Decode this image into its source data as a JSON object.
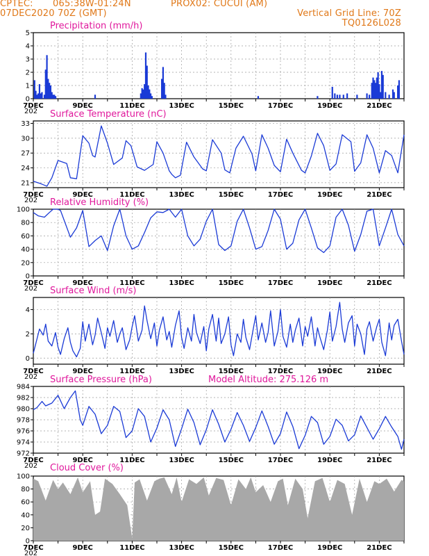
{
  "header": {
    "source": "CPTEC:",
    "coords": "065:38W-01:24N",
    "station": "PROX02: CUCUI (AM)",
    "datetime": "07DEC2020 70Z (GMT)",
    "grid_note": "Vertical Grid Line: 70Z",
    "code": "TQ0126L028"
  },
  "colors": {
    "header": "#e07818",
    "title": "#e0189c",
    "series": "#1a3ad6",
    "cloud": "#a8a8a8",
    "grid": "#9a9a9a"
  },
  "x_axis": {
    "days": [
      "7DEC",
      "9DEC",
      "11DEC",
      "13DEC",
      "15DEC",
      "17DEC",
      "19DEC",
      "21DEC"
    ],
    "start_day": 7,
    "end_day": 22,
    "year_stub": "202"
  },
  "chart_data": [
    {
      "type": "bar",
      "id": "precip",
      "title": "Precipitation (mm/h)",
      "ylim": [
        0,
        5
      ],
      "yticks": [
        0,
        1,
        2,
        3,
        4,
        5
      ],
      "grid": true,
      "x": [
        7.05,
        7.1,
        7.15,
        7.2,
        7.25,
        7.3,
        7.35,
        7.45,
        7.5,
        7.55,
        7.6,
        7.65,
        7.7,
        7.75,
        7.8,
        7.85,
        7.9,
        9.5,
        11.35,
        11.4,
        11.45,
        11.5,
        11.55,
        11.6,
        11.65,
        11.7,
        11.75,
        11.8,
        12.2,
        12.25,
        12.3,
        12.35,
        16.1,
        18.5,
        19.1,
        19.2,
        19.3,
        19.4,
        19.55,
        19.7,
        20.1,
        20.5,
        20.6,
        20.7,
        20.75,
        20.8,
        20.85,
        20.9,
        20.95,
        21.0,
        21.05,
        21.1,
        21.15,
        21.25,
        21.4,
        21.55,
        21.6,
        21.75,
        21.8
      ],
      "values": [
        1.4,
        0.6,
        0.3,
        0.4,
        1.1,
        0.4,
        0.5,
        0.3,
        2.2,
        3.3,
        1.5,
        1.2,
        1.0,
        0.5,
        0.3,
        0.3,
        0.2,
        0.3,
        0.4,
        0.8,
        0.7,
        1.1,
        3.5,
        2.5,
        1.0,
        0.7,
        0.4,
        0.2,
        1.5,
        2.4,
        1.2,
        0.3,
        0.2,
        0.2,
        0.9,
        0.4,
        0.3,
        0.3,
        0.3,
        0.4,
        0.3,
        0.4,
        0.3,
        1.2,
        1.6,
        1.4,
        1.2,
        1.6,
        2.0,
        1.1,
        0.5,
        2.1,
        1.8,
        0.5,
        0.3,
        0.7,
        0.5,
        1.0,
        1.4
      ]
    },
    {
      "type": "line",
      "id": "temp",
      "title": "Surface Temperature (nC)",
      "ylim": [
        20,
        33.5
      ],
      "yticks": [
        21,
        24,
        27,
        30,
        33
      ],
      "grid": true,
      "x": [
        7.0,
        7.3,
        7.5,
        7.55,
        7.75,
        8.0,
        8.35,
        8.5,
        8.75,
        9.0,
        9.25,
        9.4,
        9.5,
        9.75,
        10.0,
        10.25,
        10.6,
        10.75,
        10.95,
        11.2,
        11.5,
        11.85,
        12.0,
        12.25,
        12.5,
        12.6,
        12.75,
        12.95,
        13.2,
        13.5,
        13.85,
        14.0,
        14.25,
        14.6,
        14.75,
        14.95,
        15.2,
        15.5,
        15.85,
        16.0,
        16.25,
        16.5,
        16.75,
        17.0,
        17.25,
        17.5,
        17.85,
        18.0,
        18.25,
        18.5,
        18.75,
        19.0,
        19.25,
        19.5,
        19.85,
        20.0,
        20.25,
        20.5,
        20.75,
        21.0,
        21.25,
        21.5,
        21.75,
        22.0
      ],
      "values": [
        21.3,
        20.8,
        20.4,
        20.3,
        22.0,
        25.5,
        24.9,
        22.0,
        21.8,
        30.5,
        29.0,
        26.5,
        26.2,
        32.5,
        29.0,
        24.7,
        26.0,
        29.5,
        28.5,
        24.2,
        23.5,
        24.7,
        29.3,
        27.0,
        23.4,
        22.7,
        22.0,
        22.5,
        29.2,
        26.2,
        23.8,
        23.4,
        29.7,
        27.0,
        23.6,
        23.0,
        28.0,
        30.4,
        26.8,
        23.4,
        30.7,
        28.0,
        24.5,
        23.2,
        29.8,
        27.0,
        23.5,
        23.0,
        26.4,
        31.0,
        28.5,
        23.5,
        24.8,
        30.7,
        29.3,
        23.3,
        25.0,
        30.7,
        28.0,
        23.0,
        27.5,
        26.5,
        23.0,
        30.7
      ]
    },
    {
      "type": "line",
      "id": "rh",
      "title": "Relative Humidity (%)",
      "ylim": [
        0,
        100
      ],
      "yticks": [
        0,
        20,
        40,
        60,
        80,
        100
      ],
      "grid": true,
      "x": [
        7.0,
        7.2,
        7.45,
        7.65,
        7.8,
        8.0,
        8.1,
        8.5,
        8.75,
        9.0,
        9.25,
        9.5,
        9.75,
        10.0,
        10.25,
        10.5,
        10.75,
        11.0,
        11.25,
        11.5,
        11.75,
        12.0,
        12.25,
        12.5,
        12.75,
        13.0,
        13.25,
        13.5,
        13.75,
        14.0,
        14.25,
        14.5,
        14.75,
        15.0,
        15.25,
        15.5,
        15.75,
        16.0,
        16.25,
        16.5,
        16.75,
        17.0,
        17.25,
        17.5,
        17.75,
        18.0,
        18.25,
        18.5,
        18.75,
        19.0,
        19.25,
        19.5,
        19.75,
        20.0,
        20.25,
        20.5,
        20.75,
        21.0,
        21.25,
        21.5,
        21.75,
        22.0
      ],
      "values": [
        95,
        90,
        88,
        95,
        100,
        100,
        98,
        58,
        72,
        98,
        44,
        53,
        60,
        38,
        75,
        100,
        60,
        40,
        45,
        65,
        87,
        96,
        95,
        100,
        88,
        100,
        60,
        45,
        55,
        82,
        100,
        47,
        38,
        45,
        82,
        100,
        72,
        40,
        44,
        68,
        100,
        85,
        40,
        49,
        84,
        100,
        72,
        42,
        35,
        45,
        88,
        100,
        76,
        37,
        62,
        97,
        100,
        45,
        72,
        100,
        62,
        45
      ]
    },
    {
      "type": "line",
      "id": "wind",
      "title": "Surface Wind (m/s)",
      "ylim": [
        -0.5,
        5
      ],
      "yticks": [
        0,
        2,
        4
      ],
      "grid": true,
      "x": [
        7.0,
        7.1,
        7.25,
        7.4,
        7.5,
        7.6,
        7.75,
        7.9,
        8.0,
        8.1,
        8.25,
        8.4,
        8.5,
        8.6,
        8.75,
        8.9,
        9.0,
        9.1,
        9.25,
        9.4,
        9.5,
        9.6,
        9.75,
        9.9,
        10.0,
        10.1,
        10.25,
        10.4,
        10.5,
        10.6,
        10.75,
        10.9,
        11.0,
        11.1,
        11.25,
        11.4,
        11.5,
        11.6,
        11.75,
        11.9,
        12.0,
        12.1,
        12.25,
        12.4,
        12.5,
        12.6,
        12.75,
        12.9,
        13.0,
        13.1,
        13.25,
        13.4,
        13.5,
        13.6,
        13.75,
        13.9,
        14.0,
        14.1,
        14.25,
        14.4,
        14.5,
        14.6,
        14.75,
        14.9,
        15.0,
        15.1,
        15.25,
        15.4,
        15.5,
        15.6,
        15.75,
        15.9,
        16.0,
        16.1,
        16.25,
        16.4,
        16.5,
        16.6,
        16.75,
        16.9,
        17.0,
        17.1,
        17.25,
        17.4,
        17.5,
        17.6,
        17.75,
        17.9,
        18.0,
        18.1,
        18.25,
        18.4,
        18.5,
        18.6,
        18.75,
        18.9,
        19.0,
        19.1,
        19.25,
        19.4,
        19.5,
        19.6,
        19.75,
        19.9,
        20.0,
        20.1,
        20.25,
        20.4,
        20.5,
        20.6,
        20.75,
        20.9,
        21.0,
        21.1,
        21.25,
        21.4,
        21.5,
        21.6,
        21.75,
        21.9,
        22.0
      ],
      "values": [
        0.4,
        1.2,
        2.4,
        1.9,
        2.8,
        1.4,
        1.0,
        2.1,
        0.9,
        0.3,
        1.6,
        2.5,
        1.3,
        0.6,
        0.1,
        0.8,
        3.0,
        1.4,
        2.8,
        1.1,
        1.9,
        3.3,
        2.1,
        0.8,
        2.5,
        1.8,
        3.1,
        1.3,
        2.0,
        2.5,
        0.7,
        1.5,
        2.6,
        3.5,
        1.4,
        2.3,
        4.3,
        3.1,
        1.6,
        2.9,
        1.0,
        2.3,
        3.4,
        1.5,
        2.2,
        0.9,
        2.7,
        3.9,
        1.7,
        0.8,
        2.5,
        1.4,
        3.6,
        2.1,
        1.2,
        2.6,
        0.6,
        2.4,
        3.6,
        1.4,
        3.3,
        1.2,
        2.0,
        3.4,
        1.1,
        0.2,
        2.0,
        1.3,
        3.2,
        1.7,
        0.7,
        2.4,
        3.5,
        1.5,
        2.9,
        1.3,
        2.1,
        3.9,
        1.0,
        2.2,
        4.0,
        1.8,
        0.9,
        2.8,
        1.3,
        2.3,
        3.3,
        1.0,
        2.6,
        1.8,
        3.4,
        1.0,
        2.5,
        1.7,
        0.7,
        2.3,
        3.8,
        1.4,
        2.6,
        4.6,
        2.4,
        1.3,
        2.9,
        3.5,
        1.0,
        2.8,
        2.0,
        0.3,
        2.4,
        3.0,
        1.4,
        2.6,
        3.2,
        1.3,
        0.2,
        2.9,
        1.5,
        2.7,
        3.2,
        1.4,
        0.3
      ]
    },
    {
      "type": "line",
      "id": "press",
      "title": "Surface Pressure (hPa)",
      "ylim": [
        972,
        984
      ],
      "yticks": [
        972,
        974,
        976,
        978,
        980,
        982,
        984
      ],
      "grid": true,
      "x": [
        7.0,
        7.15,
        7.35,
        7.5,
        7.75,
        8.0,
        8.25,
        8.5,
        8.7,
        8.9,
        9.0,
        9.25,
        9.5,
        9.75,
        10.0,
        10.25,
        10.5,
        10.75,
        11.0,
        11.25,
        11.5,
        11.75,
        12.0,
        12.25,
        12.5,
        12.75,
        13.0,
        13.25,
        13.5,
        13.75,
        14.0,
        14.25,
        14.5,
        14.75,
        15.0,
        15.25,
        15.5,
        15.75,
        16.0,
        16.25,
        16.5,
        16.75,
        17.0,
        17.25,
        17.5,
        17.75,
        18.0,
        18.25,
        18.5,
        18.75,
        19.0,
        19.25,
        19.5,
        19.75,
        20.0,
        20.25,
        20.5,
        20.75,
        21.0,
        21.25,
        21.5,
        21.75,
        21.9,
        22.0
      ],
      "values": [
        979.8,
        980.2,
        981.3,
        980.5,
        981.0,
        982.4,
        980.0,
        982.0,
        983.2,
        978.0,
        977.0,
        980.4,
        979.0,
        975.5,
        977.0,
        980.4,
        979.5,
        974.8,
        976.0,
        980.0,
        978.6,
        974.0,
        976.5,
        979.8,
        978.0,
        973.2,
        976.4,
        979.9,
        977.5,
        973.5,
        976.2,
        979.8,
        977.2,
        974.0,
        976.3,
        979.3,
        977.0,
        974.1,
        976.6,
        979.6,
        976.8,
        973.6,
        975.5,
        979.4,
        976.8,
        972.8,
        975.2,
        978.6,
        977.5,
        973.6,
        975.0,
        978.1,
        977.0,
        974.2,
        975.3,
        978.7,
        976.6,
        974.5,
        976.4,
        978.6,
        976.7,
        975.0,
        972.7,
        974.5
      ]
    },
    {
      "type": "area",
      "id": "cloud",
      "title": "Cloud Cover (%)",
      "ylim": [
        0,
        100
      ],
      "yticks": [
        0,
        20,
        40,
        60,
        80,
        100
      ],
      "grid": true,
      "x": [
        7.0,
        7.2,
        7.5,
        7.8,
        8.0,
        8.2,
        8.5,
        8.8,
        9.0,
        9.3,
        9.5,
        9.7,
        9.9,
        10.2,
        10.5,
        10.8,
        11.0,
        11.1,
        11.3,
        11.6,
        11.9,
        12.1,
        12.3,
        12.6,
        12.8,
        13.0,
        13.3,
        13.6,
        13.9,
        14.1,
        14.4,
        14.7,
        15.0,
        15.3,
        15.6,
        15.8,
        16.0,
        16.3,
        16.6,
        16.9,
        17.1,
        17.3,
        17.6,
        17.9,
        18.1,
        18.4,
        18.7,
        19.0,
        19.3,
        19.6,
        19.9,
        20.2,
        20.5,
        20.8,
        21.0,
        21.3,
        21.6,
        21.9,
        22.0
      ],
      "values": [
        96,
        92,
        62,
        94,
        80,
        90,
        72,
        98,
        75,
        92,
        40,
        45,
        96,
        88,
        72,
        55,
        4,
        90,
        95,
        62,
        92,
        96,
        98,
        72,
        98,
        60,
        95,
        88,
        98,
        70,
        97,
        94,
        55,
        95,
        80,
        98,
        75,
        86,
        60,
        92,
        96,
        55,
        96,
        80,
        35,
        92,
        97,
        60,
        94,
        88,
        40,
        96,
        60,
        92,
        88,
        96,
        76,
        94,
        92
      ]
    }
  ],
  "extra": {
    "model_altitude": "Model Altitude: 275.126 m"
  }
}
